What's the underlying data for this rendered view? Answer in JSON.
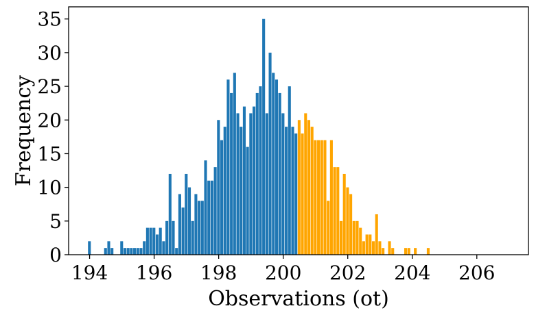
{
  "chart_data": {
    "type": "bar",
    "title": "",
    "xlabel": "Observations (ot)",
    "ylabel": "Frequency",
    "xlim": [
      193.35,
      207.6
    ],
    "ylim": [
      0,
      36.8
    ],
    "xticks": [
      194,
      196,
      198,
      200,
      202,
      204,
      206
    ],
    "yticks": [
      0,
      5,
      10,
      15,
      20,
      25,
      30,
      35
    ],
    "grid": false,
    "legend": "none",
    "bin_width": 0.1,
    "colors": {
      "left": "#1f77b4",
      "right": "#ffa500"
    },
    "split_x": 200.5,
    "bins": [
      {
        "x": 194.0,
        "y": 2
      },
      {
        "x": 194.1,
        "y": 0
      },
      {
        "x": 194.2,
        "y": 0
      },
      {
        "x": 194.3,
        "y": 0
      },
      {
        "x": 194.4,
        "y": 0
      },
      {
        "x": 194.5,
        "y": 1
      },
      {
        "x": 194.6,
        "y": 2
      },
      {
        "x": 194.7,
        "y": 1
      },
      {
        "x": 194.8,
        "y": 0
      },
      {
        "x": 194.9,
        "y": 0
      },
      {
        "x": 195.0,
        "y": 2
      },
      {
        "x": 195.1,
        "y": 1
      },
      {
        "x": 195.2,
        "y": 1
      },
      {
        "x": 195.3,
        "y": 1
      },
      {
        "x": 195.4,
        "y": 1
      },
      {
        "x": 195.5,
        "y": 1
      },
      {
        "x": 195.6,
        "y": 1
      },
      {
        "x": 195.7,
        "y": 2
      },
      {
        "x": 195.8,
        "y": 4
      },
      {
        "x": 195.9,
        "y": 4
      },
      {
        "x": 196.0,
        "y": 4
      },
      {
        "x": 196.1,
        "y": 3
      },
      {
        "x": 196.2,
        "y": 4
      },
      {
        "x": 196.3,
        "y": 2
      },
      {
        "x": 196.4,
        "y": 5
      },
      {
        "x": 196.5,
        "y": 12
      },
      {
        "x": 196.6,
        "y": 5
      },
      {
        "x": 196.7,
        "y": 1
      },
      {
        "x": 196.8,
        "y": 9
      },
      {
        "x": 196.9,
        "y": 7
      },
      {
        "x": 197.0,
        "y": 12
      },
      {
        "x": 197.1,
        "y": 10
      },
      {
        "x": 197.2,
        "y": 5
      },
      {
        "x": 197.3,
        "y": 9
      },
      {
        "x": 197.4,
        "y": 8
      },
      {
        "x": 197.5,
        "y": 8
      },
      {
        "x": 197.6,
        "y": 14
      },
      {
        "x": 197.7,
        "y": 11
      },
      {
        "x": 197.8,
        "y": 11
      },
      {
        "x": 197.9,
        "y": 13
      },
      {
        "x": 198.0,
        "y": 20
      },
      {
        "x": 198.1,
        "y": 17
      },
      {
        "x": 198.2,
        "y": 19
      },
      {
        "x": 198.3,
        "y": 26
      },
      {
        "x": 198.4,
        "y": 24
      },
      {
        "x": 198.5,
        "y": 27
      },
      {
        "x": 198.6,
        "y": 21
      },
      {
        "x": 198.7,
        "y": 19
      },
      {
        "x": 198.8,
        "y": 22
      },
      {
        "x": 198.9,
        "y": 16
      },
      {
        "x": 199.0,
        "y": 21
      },
      {
        "x": 199.1,
        "y": 22
      },
      {
        "x": 199.2,
        "y": 24
      },
      {
        "x": 199.3,
        "y": 25
      },
      {
        "x": 199.4,
        "y": 35
      },
      {
        "x": 199.5,
        "y": 21
      },
      {
        "x": 199.6,
        "y": 30
      },
      {
        "x": 199.7,
        "y": 27
      },
      {
        "x": 199.8,
        "y": 26
      },
      {
        "x": 199.9,
        "y": 24
      },
      {
        "x": 200.0,
        "y": 21
      },
      {
        "x": 200.1,
        "y": 19
      },
      {
        "x": 200.2,
        "y": 25
      },
      {
        "x": 200.3,
        "y": 19
      },
      {
        "x": 200.4,
        "y": 18
      },
      {
        "x": 200.5,
        "y": 20
      },
      {
        "x": 200.6,
        "y": 18
      },
      {
        "x": 200.7,
        "y": 21
      },
      {
        "x": 200.8,
        "y": 20
      },
      {
        "x": 200.9,
        "y": 19
      },
      {
        "x": 201.0,
        "y": 17
      },
      {
        "x": 201.1,
        "y": 17
      },
      {
        "x": 201.2,
        "y": 17
      },
      {
        "x": 201.3,
        "y": 17
      },
      {
        "x": 201.4,
        "y": 8
      },
      {
        "x": 201.5,
        "y": 17
      },
      {
        "x": 201.6,
        "y": 13
      },
      {
        "x": 201.7,
        "y": 13
      },
      {
        "x": 201.8,
        "y": 5
      },
      {
        "x": 201.9,
        "y": 12
      },
      {
        "x": 202.0,
        "y": 10
      },
      {
        "x": 202.1,
        "y": 9
      },
      {
        "x": 202.2,
        "y": 5
      },
      {
        "x": 202.3,
        "y": 5
      },
      {
        "x": 202.4,
        "y": 4
      },
      {
        "x": 202.5,
        "y": 2
      },
      {
        "x": 202.6,
        "y": 3
      },
      {
        "x": 202.7,
        "y": 3
      },
      {
        "x": 202.8,
        "y": 2
      },
      {
        "x": 202.9,
        "y": 6
      },
      {
        "x": 203.0,
        "y": 2
      },
      {
        "x": 203.1,
        "y": 1
      },
      {
        "x": 203.2,
        "y": 0
      },
      {
        "x": 203.3,
        "y": 2
      },
      {
        "x": 203.4,
        "y": 1
      },
      {
        "x": 203.5,
        "y": 0
      },
      {
        "x": 203.6,
        "y": 0
      },
      {
        "x": 203.7,
        "y": 0
      },
      {
        "x": 203.8,
        "y": 1
      },
      {
        "x": 203.9,
        "y": 1
      },
      {
        "x": 204.0,
        "y": 0
      },
      {
        "x": 204.1,
        "y": 1
      },
      {
        "x": 204.2,
        "y": 0
      },
      {
        "x": 204.3,
        "y": 0
      },
      {
        "x": 204.4,
        "y": 0
      },
      {
        "x": 204.5,
        "y": 1
      }
    ]
  }
}
